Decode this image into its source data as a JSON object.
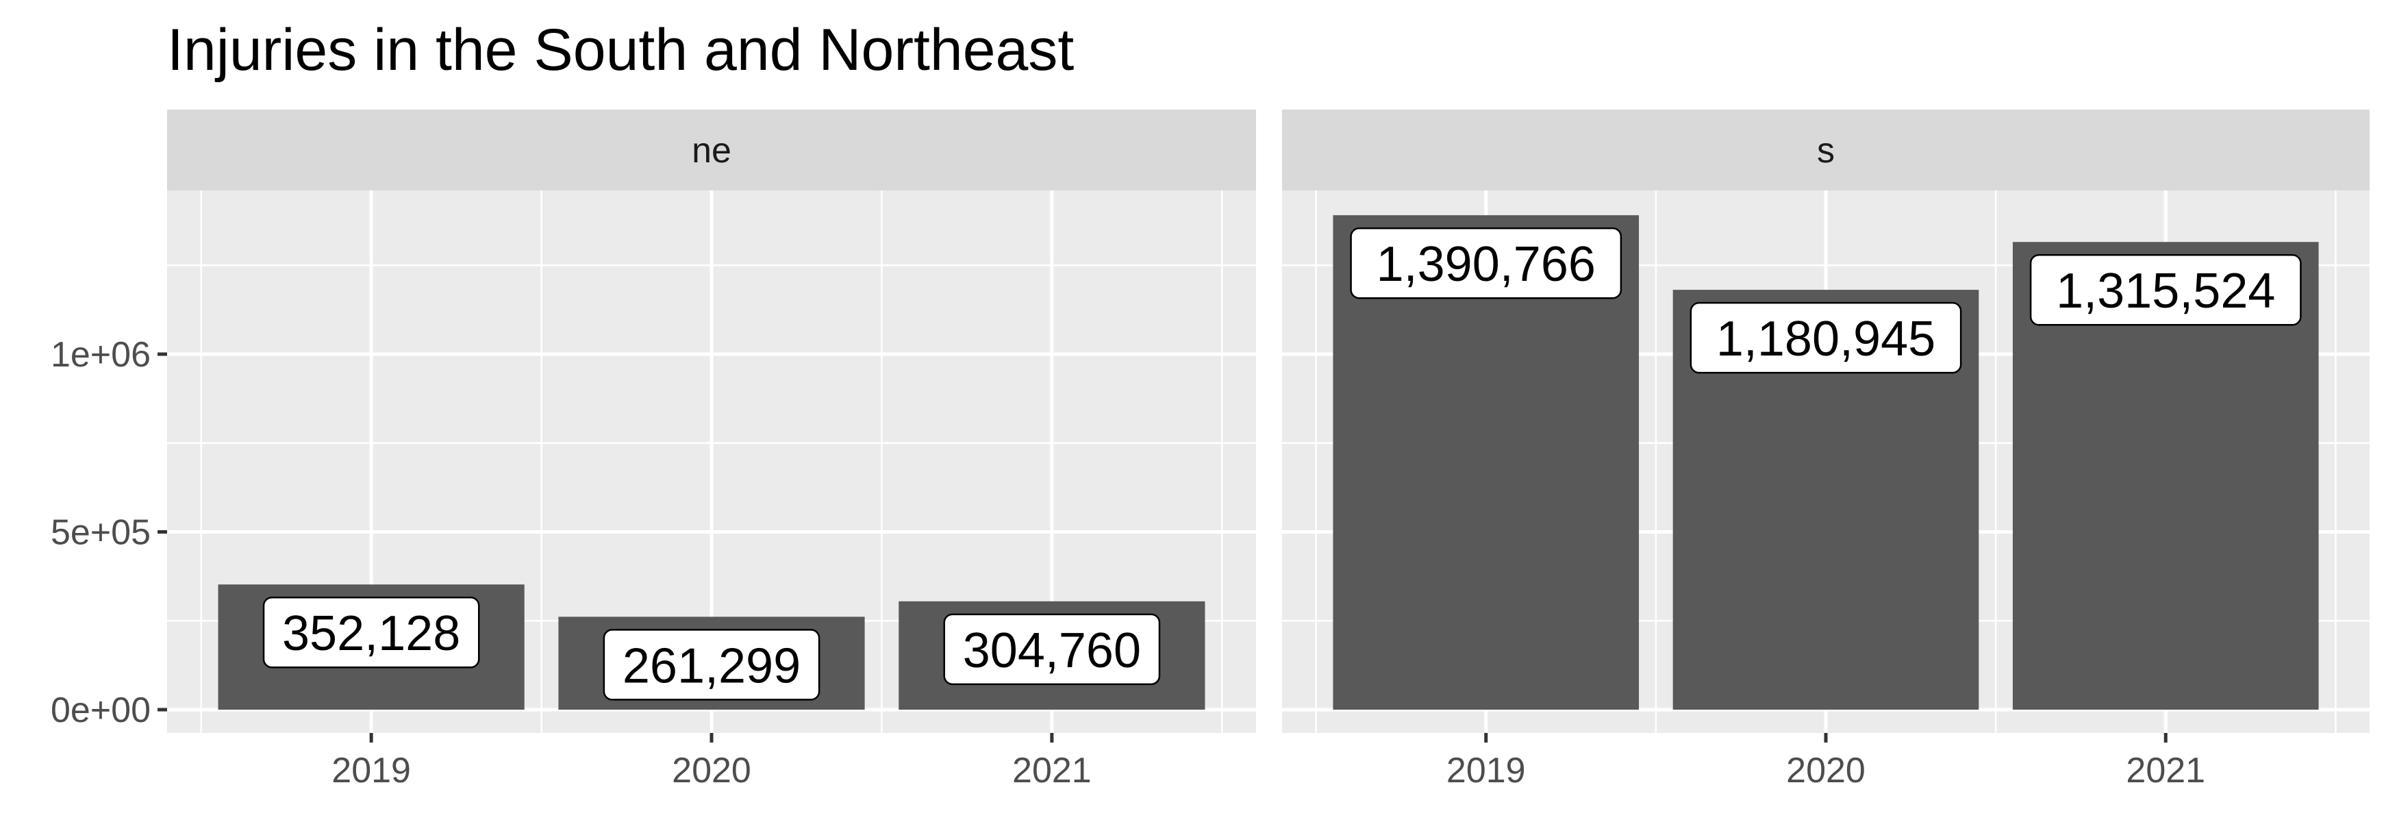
{
  "chart_data": {
    "type": "bar",
    "title": "Injuries in the South and Northeast",
    "xlabel": "",
    "ylabel": "",
    "categories": [
      "2019",
      "2020",
      "2021"
    ],
    "facets": [
      {
        "name": "ne",
        "values": [
          352128,
          261299,
          304760
        ],
        "labels": [
          "352,128",
          "261,299",
          "304,760"
        ]
      },
      {
        "name": "s",
        "values": [
          1390766,
          1180945,
          1315524
        ],
        "labels": [
          "1,390,766",
          "1,180,945",
          "1,315,524"
        ]
      }
    ],
    "ylim": [
      0,
      1460000
    ],
    "yticks": [
      0,
      500000,
      1000000
    ],
    "ytick_labels": [
      "0e+00",
      "5e+05",
      "1e+06"
    ],
    "grid": true,
    "legend": "none",
    "colors": {
      "bar": "#595959",
      "panel_background": "#ebebeb",
      "strip_background": "#d9d9d9",
      "grid": "#ffffff"
    }
  }
}
